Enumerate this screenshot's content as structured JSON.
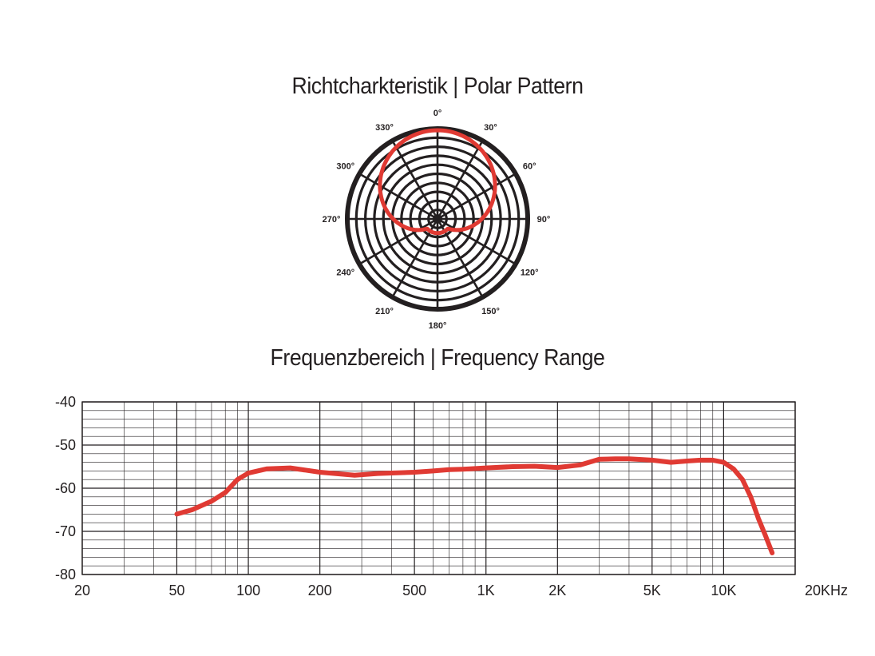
{
  "titles": {
    "polar": "Richtcharkteristik  |  Polar Pattern",
    "frequency": "Frequenzbereich  |  Frequency Range"
  },
  "chart_data": [
    {
      "type": "polar",
      "title": "Richtcharkteristik | Polar Pattern",
      "angle_labels": [
        "0°",
        "30°",
        "60°",
        "90°",
        "120°",
        "150°",
        "180°",
        "210°",
        "240°",
        "270°",
        "300°",
        "330°"
      ],
      "angles_deg": [
        0,
        30,
        60,
        90,
        120,
        150,
        180,
        210,
        240,
        270,
        300,
        330
      ],
      "pattern": "cardioid",
      "rings": 10,
      "pattern_color": "#e03a33",
      "grid_color": "#231f20"
    },
    {
      "type": "line",
      "title": "Frequenzbereich | Frequency Range",
      "x_scale": "log",
      "xlim": [
        20,
        20000
      ],
      "ylim": [
        -80,
        -40
      ],
      "x_tick_values": [
        20,
        50,
        100,
        200,
        500,
        1000,
        2000,
        5000,
        10000,
        20000
      ],
      "x_tick_labels": [
        "20",
        "50",
        "100",
        "200",
        "500",
        "1K",
        "2K",
        "5K",
        "10K",
        "20KHz"
      ],
      "y_tick_values": [
        -40,
        -50,
        -60,
        -70,
        -80
      ],
      "y_tick_labels": [
        "-40",
        "-50",
        "-60",
        "-70",
        "-80"
      ],
      "grid": true,
      "line_color": "#e03a33",
      "series": [
        {
          "x": [
            50,
            58,
            70,
            80,
            90,
            100,
            120,
            150,
            200,
            280,
            350,
            500,
            600,
            700,
            800,
            1000,
            1300,
            1600,
            2000,
            2500,
            3000,
            3500,
            4000,
            5000,
            6000,
            7000,
            8000,
            9000,
            10000,
            11000,
            12000,
            13000,
            14000,
            15000,
            16000
          ],
          "y": [
            -66,
            -65,
            -63,
            -61,
            -58,
            -56.5,
            -55.5,
            -55.3,
            -56.3,
            -57,
            -56.6,
            -56.3,
            -56,
            -55.7,
            -55.6,
            -55.3,
            -55,
            -54.9,
            -55.2,
            -54.6,
            -53.3,
            -53.2,
            -53.2,
            -53.5,
            -54,
            -53.7,
            -53.5,
            -53.5,
            -54,
            -55.5,
            -58,
            -62,
            -67,
            -71,
            -75
          ]
        }
      ]
    }
  ]
}
